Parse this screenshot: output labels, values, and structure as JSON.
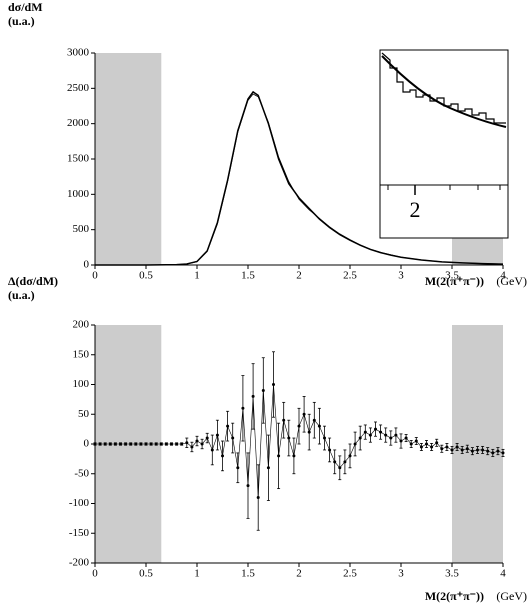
{
  "chart_data": [
    {
      "type": "line",
      "ylabel": "dσ/dM",
      "yunit": "(u.a.)",
      "xlabel": "M(2(π⁺π⁻))",
      "xunit": "(GeV)",
      "x": [
        0,
        0.5,
        0.8,
        0.9,
        1,
        1.1,
        1.2,
        1.3,
        1.4,
        1.5,
        1.55,
        1.6,
        1.7,
        1.8,
        1.9,
        2,
        2.1,
        2.2,
        2.3,
        2.4,
        2.5,
        2.6,
        2.7,
        2.8,
        2.9,
        3,
        3.2,
        3.4,
        3.6,
        3.8,
        4
      ],
      "series": [
        {
          "color": "#000000",
          "values": [
            0,
            0,
            5,
            15,
            50,
            200,
            600,
            1200,
            1900,
            2350,
            2450,
            2400,
            2000,
            1500,
            1150,
            950,
            800,
            650,
            530,
            430,
            350,
            280,
            220,
            175,
            140,
            110,
            70,
            45,
            30,
            20,
            12
          ]
        },
        {
          "color": "#000000",
          "values": [
            0,
            0,
            5,
            15,
            45,
            190,
            580,
            1180,
            1880,
            2330,
            2420,
            2380,
            2020,
            1530,
            1180,
            930,
            780,
            660,
            540,
            440,
            360,
            285,
            225,
            180,
            145,
            112,
            72,
            46,
            30,
            20,
            13
          ]
        }
      ],
      "xlim": [
        0,
        4
      ],
      "xticks": [
        0,
        0.5,
        1,
        1.5,
        2,
        2.5,
        3,
        3.5,
        4
      ],
      "ylim": [
        0,
        3000
      ],
      "yticks": [
        0,
        500,
        1000,
        1500,
        2000,
        2500,
        3000
      ],
      "shaded": [
        [
          0,
          0.65
        ],
        [
          3.5,
          4
        ]
      ],
      "shade_color": "#cccccc",
      "inset_xticks": [
        2
      ]
    },
    {
      "type": "errorbar",
      "ylabel": "Δ(dσ/dM)",
      "yunit": "(u.a.)",
      "xlabel": "M(2(π⁺π⁻))",
      "xunit": "(GeV)",
      "x": [
        0,
        0.05,
        0.1,
        0.15,
        0.2,
        0.25,
        0.3,
        0.35,
        0.4,
        0.45,
        0.5,
        0.55,
        0.6,
        0.65,
        0.7,
        0.75,
        0.8,
        0.85,
        0.9,
        0.95,
        1,
        1.05,
        1.1,
        1.15,
        1.2,
        1.25,
        1.3,
        1.35,
        1.4,
        1.45,
        1.5,
        1.55,
        1.6,
        1.65,
        1.7,
        1.75,
        1.8,
        1.85,
        1.9,
        1.95,
        2,
        2.05,
        2.1,
        2.15,
        2.2,
        2.25,
        2.3,
        2.35,
        2.4,
        2.45,
        2.5,
        2.55,
        2.6,
        2.65,
        2.7,
        2.75,
        2.8,
        2.85,
        2.9,
        2.95,
        3,
        3.05,
        3.1,
        3.15,
        3.2,
        3.25,
        3.3,
        3.35,
        3.4,
        3.45,
        3.5,
        3.55,
        3.6,
        3.65,
        3.7,
        3.75,
        3.8,
        3.85,
        3.9,
        3.95,
        4
      ],
      "values": [
        0,
        0,
        0,
        0,
        0,
        0,
        0,
        0,
        0,
        0,
        0,
        0,
        0,
        0,
        0,
        0,
        0,
        0,
        2,
        -5,
        5,
        0,
        10,
        -10,
        15,
        -20,
        30,
        10,
        -40,
        60,
        -70,
        80,
        -90,
        90,
        -40,
        100,
        -20,
        40,
        10,
        -20,
        30,
        50,
        20,
        40,
        30,
        10,
        -10,
        -30,
        -40,
        -30,
        -20,
        0,
        10,
        20,
        15,
        25,
        20,
        15,
        10,
        15,
        5,
        10,
        0,
        5,
        -5,
        0,
        -5,
        2,
        -8,
        -5,
        -10,
        -5,
        -10,
        -8,
        -12,
        -10,
        -10,
        -12,
        -15,
        -12,
        -15
      ],
      "errors": [
        2,
        2,
        2,
        2,
        2,
        2,
        2,
        2,
        2,
        2,
        2,
        2,
        2,
        2,
        2,
        2,
        2,
        2,
        8,
        8,
        8,
        8,
        8,
        25,
        25,
        25,
        25,
        25,
        25,
        55,
        55,
        55,
        55,
        55,
        55,
        55,
        55,
        30,
        30,
        30,
        30,
        30,
        30,
        30,
        30,
        20,
        20,
        20,
        20,
        20,
        20,
        20,
        20,
        12,
        12,
        12,
        12,
        12,
        12,
        12,
        12,
        6,
        6,
        6,
        6,
        6,
        6,
        6,
        6,
        6,
        6,
        6,
        6,
        6,
        6,
        6,
        6,
        6,
        6,
        6,
        6
      ],
      "color": "#000000",
      "xlim": [
        0,
        4
      ],
      "xticks": [
        0,
        0.5,
        1,
        1.5,
        2,
        2.5,
        3,
        3.5,
        4
      ],
      "ylim": [
        -200,
        200
      ],
      "yticks": [
        -200,
        -150,
        -100,
        -50,
        0,
        50,
        100,
        150,
        200
      ],
      "shaded": [
        [
          0,
          0.65
        ],
        [
          3.5,
          4
        ]
      ],
      "shade_color": "#cccccc"
    }
  ]
}
